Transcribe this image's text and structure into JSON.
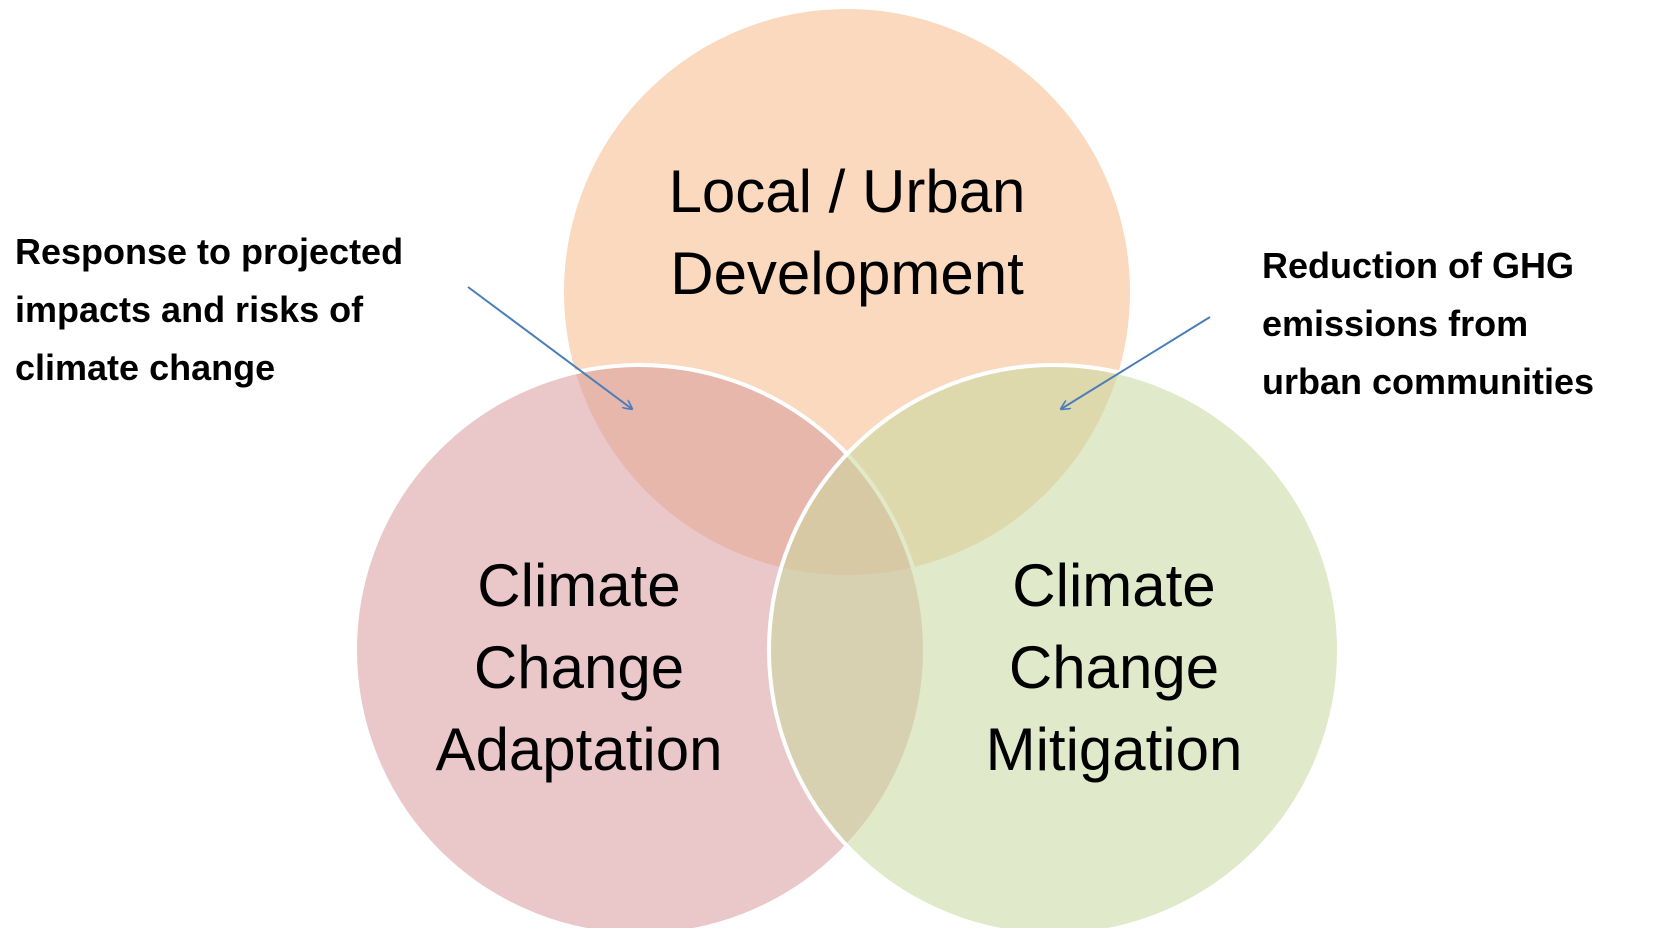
{
  "circles": [
    {
      "lines": [
        "Local / Urban",
        "Development"
      ]
    },
    {
      "lines": [
        "Climate",
        "Change",
        "Adaptation"
      ]
    },
    {
      "lines": [
        "Climate",
        "Change",
        "Mitigation"
      ]
    }
  ],
  "annotations": [
    {
      "lines": [
        "Response to projected",
        "impacts and risks of",
        "climate change"
      ]
    },
    {
      "lines": [
        "Reduction of GHG",
        "emissions from",
        "urban communities"
      ]
    }
  ]
}
